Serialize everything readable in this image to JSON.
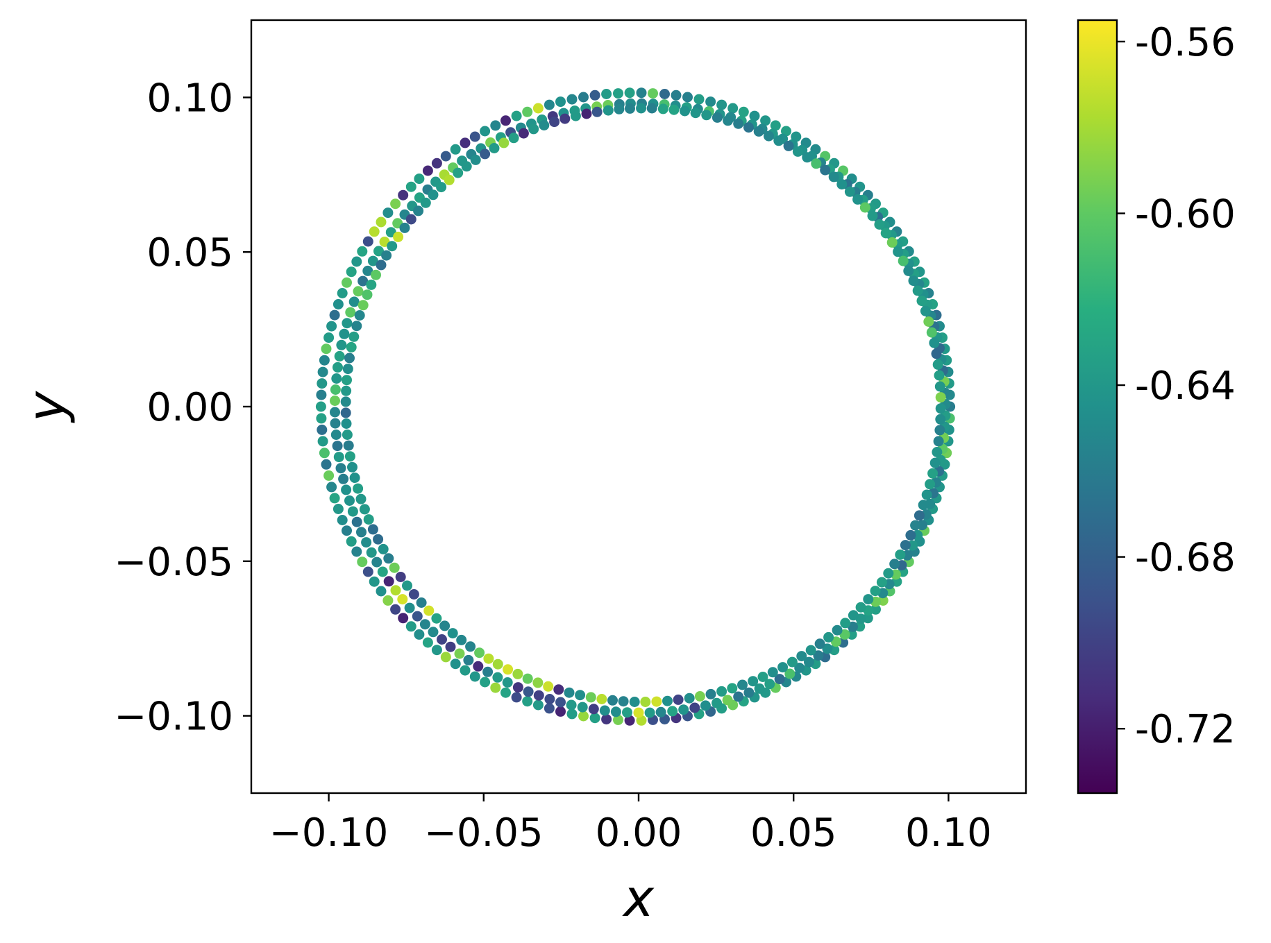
{
  "chart_data": {
    "type": "scatter",
    "title": "",
    "xlabel": "x",
    "ylabel": "y",
    "xlim": [
      -0.125,
      0.125
    ],
    "ylim": [
      -0.125,
      0.125
    ],
    "xticks": [
      -0.1,
      -0.05,
      0.0,
      0.05,
      0.1
    ],
    "yticks": [
      -0.1,
      -0.05,
      0.0,
      0.05,
      0.1
    ],
    "xtick_labels": [
      "−0.10",
      "−0.05",
      "0.00",
      "0.05",
      "0.10"
    ],
    "ytick_labels": [
      "−0.10",
      "−0.05",
      "0.00",
      "0.05",
      "0.10"
    ],
    "grid": false,
    "colormap": "viridis",
    "colorbar": {
      "range": [
        -0.735,
        -0.555
      ],
      "ticks": [
        -0.56,
        -0.6,
        -0.64,
        -0.68,
        -0.72
      ],
      "tick_labels": [
        "-0.56",
        "-0.60",
        "-0.64",
        "-0.68",
        "-0.72"
      ]
    },
    "series": [
      {
        "description_shape": "three closely spaced near-circular loops of radius ~0.095-0.102 centred near (0,0)",
        "x": [],
        "y": [],
        "c": []
      }
    ]
  }
}
